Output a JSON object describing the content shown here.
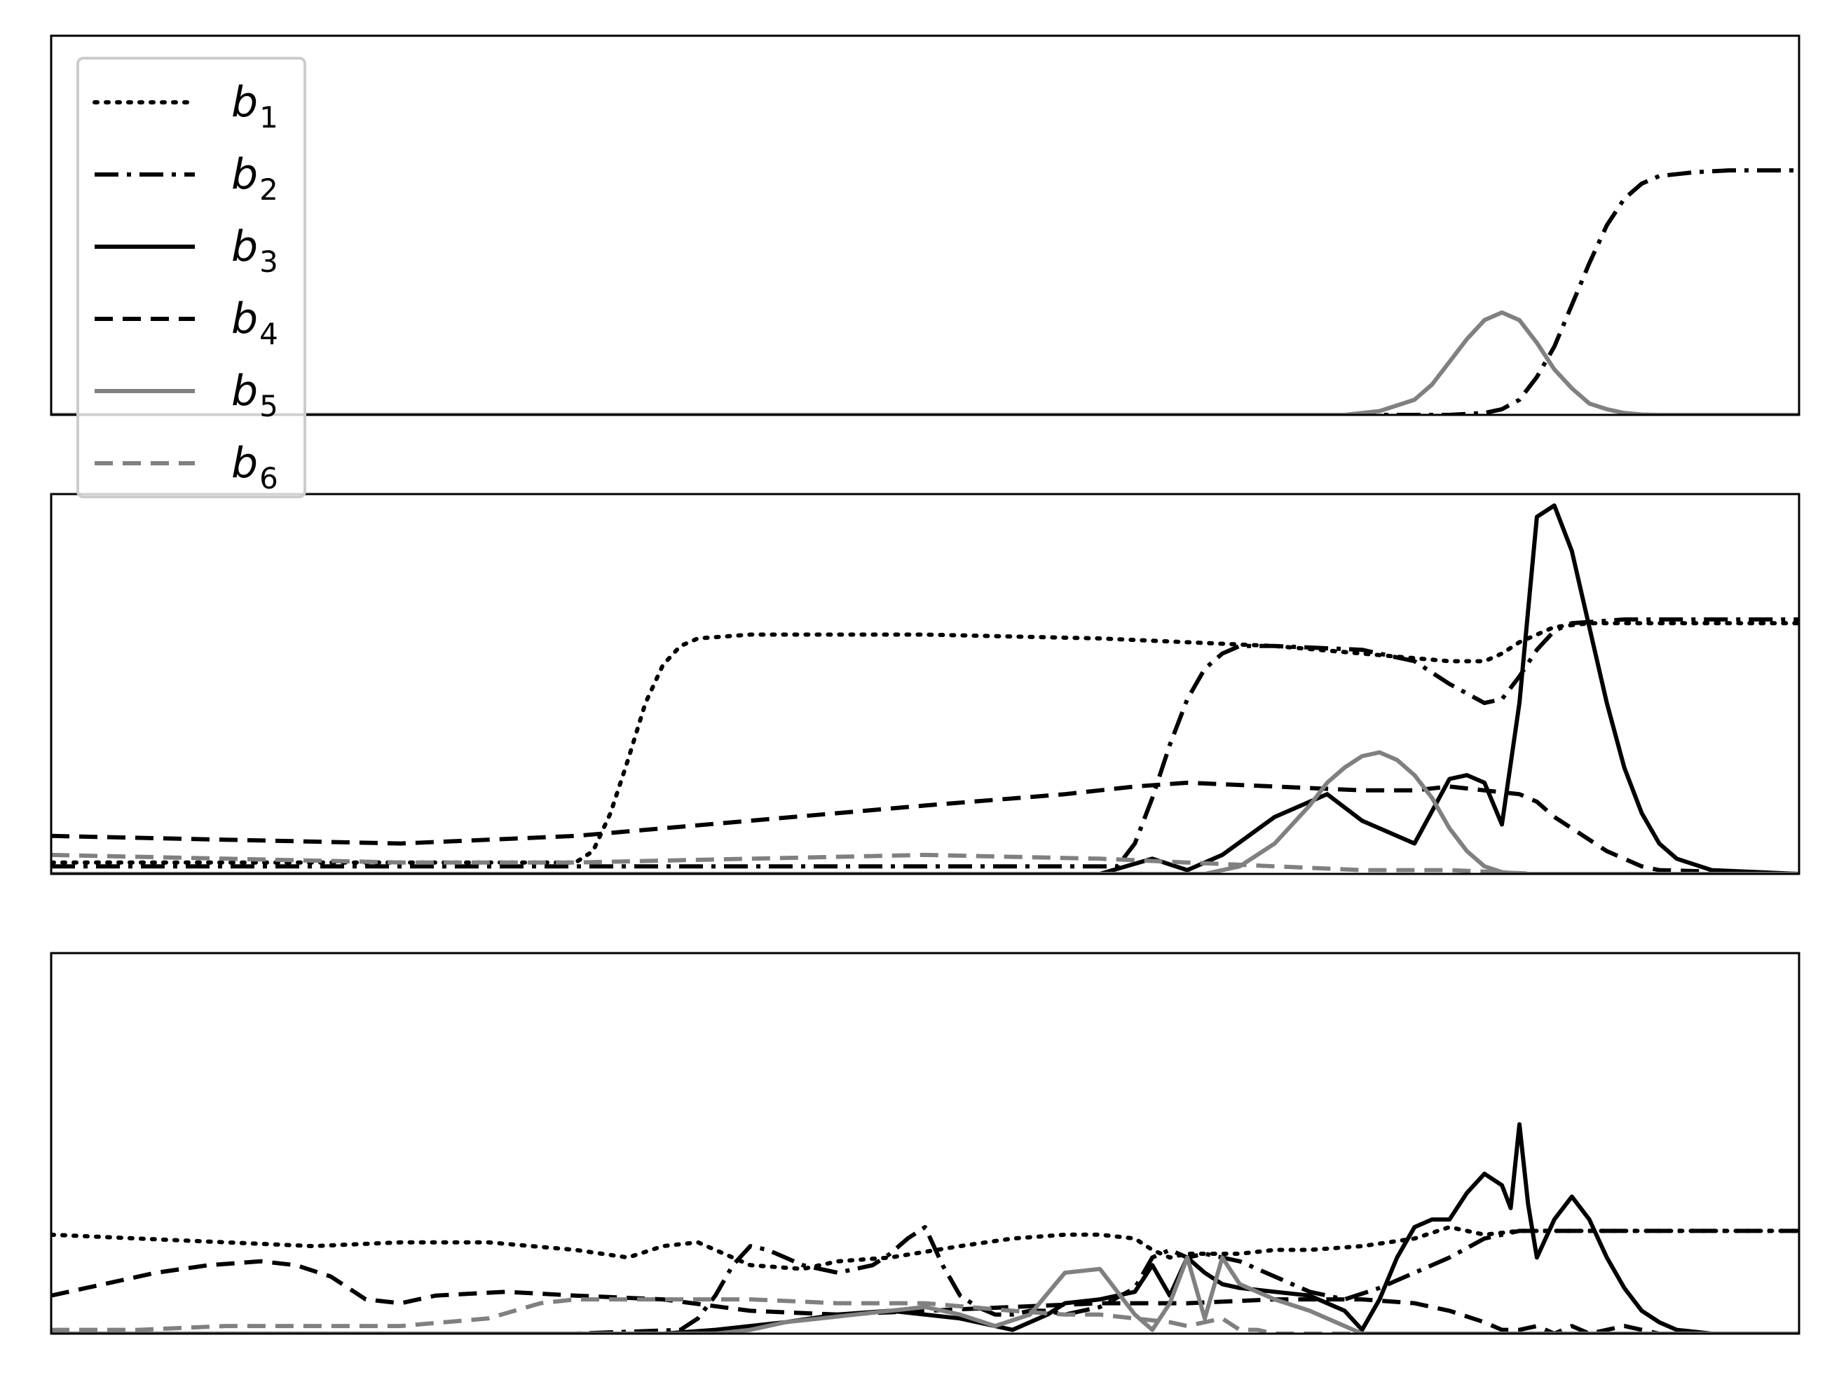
{
  "chart_data": {
    "type": "line",
    "description_note": "",
    "legend": {
      "placement": "top-left",
      "entries": [
        {
          "base": "b",
          "sub": "1",
          "color": "#000000",
          "dash": "dotted"
        },
        {
          "base": "b",
          "sub": "2",
          "color": "#000000",
          "dash": "dashdot"
        },
        {
          "base": "b",
          "sub": "3",
          "color": "#000000",
          "dash": "solid"
        },
        {
          "base": "b",
          "sub": "4",
          "color": "#000000",
          "dash": "dashed"
        },
        {
          "base": "b",
          "sub": "5",
          "color": "#808080",
          "dash": "solid"
        },
        {
          "base": "b",
          "sub": "6",
          "color": "#808080",
          "dash": "dashed"
        }
      ]
    },
    "panels": [
      {
        "name": "top",
        "xlim": [
          0,
          100
        ],
        "ylim": [
          0,
          1
        ],
        "grid": false,
        "ticks": "none",
        "series": [
          {
            "name": "b2",
            "color": "#000000",
            "dash": "dashdot",
            "x": [
              0,
              80,
              82,
              83,
              84,
              85,
              86,
              87,
              88,
              89,
              90,
              91,
              92,
              94,
              96,
              100
            ],
            "y": [
              0,
              0,
              0.005,
              0.015,
              0.04,
              0.1,
              0.18,
              0.29,
              0.4,
              0.5,
              0.57,
              0.61,
              0.63,
              0.64,
              0.645,
              0.645
            ]
          },
          {
            "name": "b5",
            "color": "#808080",
            "dash": "solid",
            "x": [
              0,
              74,
              76,
              78,
              79,
              80,
              81,
              82,
              83,
              84,
              85,
              86,
              87,
              88,
              89,
              90,
              91,
              92,
              100
            ],
            "y": [
              0,
              0,
              0.01,
              0.04,
              0.08,
              0.14,
              0.2,
              0.25,
              0.27,
              0.25,
              0.19,
              0.12,
              0.07,
              0.03,
              0.015,
              0.005,
              0.001,
              0,
              0
            ]
          }
        ]
      },
      {
        "name": "middle",
        "xlim": [
          0,
          100
        ],
        "ylim": [
          0,
          1
        ],
        "grid": false,
        "ticks": "none",
        "series": [
          {
            "name": "b1",
            "color": "#000000",
            "dash": "dotted",
            "x": [
              0,
              30,
              31,
              32,
              33,
              34,
              35,
              36,
              37,
              40,
              50,
              60,
              65,
              70,
              75,
              80,
              82,
              83,
              84,
              85,
              86,
              88,
              100
            ],
            "y": [
              0.03,
              0.03,
              0.06,
              0.16,
              0.3,
              0.45,
              0.55,
              0.6,
              0.62,
              0.63,
              0.63,
              0.62,
              0.61,
              0.6,
              0.58,
              0.56,
              0.56,
              0.58,
              0.61,
              0.63,
              0.65,
              0.66,
              0.66
            ]
          },
          {
            "name": "b2",
            "color": "#000000",
            "dash": "dashdot",
            "x": [
              0,
              61,
              62,
              63,
              64,
              65,
              66,
              67,
              68,
              70,
              75,
              78,
              80,
              82,
              83,
              84,
              85,
              86,
              87,
              90,
              95,
              100
            ],
            "y": [
              0.02,
              0.02,
              0.08,
              0.2,
              0.34,
              0.46,
              0.54,
              0.58,
              0.6,
              0.6,
              0.59,
              0.56,
              0.5,
              0.45,
              0.46,
              0.52,
              0.59,
              0.64,
              0.66,
              0.67,
              0.67,
              0.67
            ]
          },
          {
            "name": "b3",
            "color": "#000000",
            "dash": "solid",
            "x": [
              0,
              60,
              63,
              65,
              67,
              70,
              73,
              75,
              78,
              80,
              81,
              82,
              83,
              84,
              85,
              86,
              87,
              88,
              89,
              90,
              91,
              92,
              93,
              95,
              100
            ],
            "y": [
              0,
              0,
              0.04,
              0.01,
              0.05,
              0.15,
              0.21,
              0.14,
              0.08,
              0.25,
              0.26,
              0.24,
              0.13,
              0.45,
              0.94,
              0.97,
              0.85,
              0.65,
              0.45,
              0.28,
              0.16,
              0.08,
              0.04,
              0.01,
              0
            ]
          },
          {
            "name": "b4",
            "color": "#000000",
            "dash": "dashed",
            "x": [
              0,
              10,
              20,
              30,
              40,
              50,
              58,
              62,
              65,
              70,
              75,
              78,
              80,
              82,
              84,
              85,
              86,
              87,
              88,
              89,
              90,
              91,
              92,
              100
            ],
            "y": [
              0.1,
              0.09,
              0.08,
              0.1,
              0.14,
              0.18,
              0.21,
              0.23,
              0.24,
              0.23,
              0.22,
              0.22,
              0.23,
              0.22,
              0.21,
              0.19,
              0.15,
              0.12,
              0.09,
              0.06,
              0.04,
              0.02,
              0.01,
              0
            ]
          },
          {
            "name": "b5",
            "color": "#808080",
            "dash": "solid",
            "x": [
              0,
              66,
              68,
              70,
              72,
              73,
              74,
              75,
              76,
              77,
              78,
              79,
              80,
              81,
              82,
              83,
              84,
              100
            ],
            "y": [
              0,
              0,
              0.02,
              0.08,
              0.18,
              0.24,
              0.28,
              0.31,
              0.32,
              0.3,
              0.26,
              0.2,
              0.12,
              0.06,
              0.02,
              0.005,
              0,
              0
            ]
          },
          {
            "name": "b6",
            "color": "#808080",
            "dash": "dashed",
            "x": [
              0,
              10,
              20,
              30,
              40,
              50,
              60,
              65,
              70,
              75,
              80,
              85,
              100
            ],
            "y": [
              0.05,
              0.04,
              0.03,
              0.03,
              0.04,
              0.05,
              0.04,
              0.03,
              0.02,
              0.01,
              0.01,
              0,
              0
            ]
          }
        ]
      },
      {
        "name": "bottom",
        "xlim": [
          0,
          100
        ],
        "ylim": [
          0,
          1
        ],
        "grid": false,
        "ticks": "none",
        "series": [
          {
            "name": "b1",
            "color": "#000000",
            "dash": "dotted",
            "x": [
              0,
              5,
              10,
              15,
              20,
              25,
              30,
              33,
              35,
              37,
              40,
              43,
              45,
              48,
              52,
              55,
              58,
              60,
              62,
              63,
              64,
              65,
              68,
              70,
              72,
              75,
              78,
              80,
              82,
              84,
              86,
              88,
              90,
              95,
              100
            ],
            "y": [
              0.26,
              0.25,
              0.24,
              0.23,
              0.24,
              0.24,
              0.22,
              0.2,
              0.23,
              0.24,
              0.18,
              0.17,
              0.19,
              0.2,
              0.23,
              0.25,
              0.26,
              0.26,
              0.25,
              0.22,
              0.2,
              0.21,
              0.21,
              0.22,
              0.22,
              0.23,
              0.25,
              0.28,
              0.26,
              0.27,
              0.27,
              0.27,
              0.27,
              0.27,
              0.27
            ]
          },
          {
            "name": "b2",
            "color": "#000000",
            "dash": "dashdot",
            "x": [
              0,
              30,
              36,
              37,
              38,
              39,
              40,
              41,
              42,
              43,
              45,
              47,
              48,
              49,
              50,
              51,
              52,
              53,
              54,
              55,
              56,
              57,
              58,
              60,
              62,
              63,
              64,
              65,
              66,
              68,
              70,
              72,
              74,
              76,
              78,
              80,
              82,
              84,
              86,
              88,
              90,
              95,
              100
            ],
            "y": [
              0,
              0,
              0.01,
              0.04,
              0.1,
              0.18,
              0.23,
              0.22,
              0.2,
              0.18,
              0.16,
              0.18,
              0.21,
              0.25,
              0.28,
              0.18,
              0.1,
              0.07,
              0.05,
              0.05,
              0.06,
              0.06,
              0.05,
              0.07,
              0.12,
              0.2,
              0.22,
              0.2,
              0.21,
              0.19,
              0.15,
              0.11,
              0.09,
              0.12,
              0.16,
              0.2,
              0.25,
              0.27,
              0.27,
              0.27,
              0.27,
              0.27,
              0.27
            ]
          },
          {
            "name": "b3",
            "color": "#000000",
            "dash": "solid",
            "x": [
              0,
              35,
              38,
              40,
              42,
              45,
              48,
              50,
              52,
              55,
              57,
              58,
              60,
              62,
              63,
              64,
              65,
              66,
              67,
              68,
              70,
              72,
              74,
              75,
              76,
              77,
              78,
              79,
              80,
              81,
              82,
              83,
              83.5,
              84,
              84.5,
              85,
              86,
              87,
              88,
              89,
              90,
              91,
              92,
              93,
              95,
              100
            ],
            "y": [
              0,
              0,
              0.01,
              0.02,
              0.03,
              0.05,
              0.06,
              0.05,
              0.04,
              0.01,
              0.05,
              0.08,
              0.09,
              0.11,
              0.18,
              0.1,
              0.2,
              0.16,
              0.13,
              0.12,
              0.11,
              0.1,
              0.06,
              0.01,
              0.09,
              0.2,
              0.28,
              0.3,
              0.3,
              0.37,
              0.42,
              0.39,
              0.33,
              0.55,
              0.34,
              0.2,
              0.3,
              0.36,
              0.3,
              0.2,
              0.12,
              0.06,
              0.03,
              0.01,
              0,
              0
            ]
          },
          {
            "name": "b4",
            "color": "#000000",
            "dash": "dashed",
            "x": [
              0,
              3,
              6,
              9,
              12,
              14,
              16,
              18,
              20,
              22,
              26,
              30,
              35,
              40,
              45,
              50,
              55,
              60,
              65,
              70,
              75,
              78,
              80,
              82,
              83,
              84,
              85,
              86,
              87,
              88,
              89,
              90,
              91,
              92,
              93,
              100
            ],
            "y": [
              0.1,
              0.13,
              0.16,
              0.18,
              0.19,
              0.18,
              0.15,
              0.09,
              0.08,
              0.1,
              0.11,
              0.1,
              0.09,
              0.06,
              0.05,
              0.06,
              0.07,
              0.08,
              0.08,
              0.09,
              0.09,
              0.08,
              0.06,
              0.03,
              0.01,
              0.01,
              0.02,
              0,
              0.02,
              0,
              0.01,
              0.02,
              0.01,
              0,
              0,
              0
            ]
          },
          {
            "name": "b5",
            "color": "#808080",
            "dash": "solid",
            "x": [
              0,
              38,
              40,
              42,
              44,
              46,
              48,
              50,
              52,
              54,
              56,
              58,
              60,
              62,
              63,
              64,
              65,
              66,
              67,
              68,
              69,
              70,
              72,
              74,
              75,
              76,
              100
            ],
            "y": [
              0,
              0,
              0.01,
              0.03,
              0.04,
              0.05,
              0.06,
              0.07,
              0.05,
              0.02,
              0.05,
              0.16,
              0.17,
              0.05,
              0.01,
              0.08,
              0.2,
              0.04,
              0.2,
              0.13,
              0.11,
              0.09,
              0.06,
              0.02,
              0,
              0,
              0
            ]
          },
          {
            "name": "b6",
            "color": "#808080",
            "dash": "dashed",
            "x": [
              0,
              5,
              10,
              15,
              20,
              25,
              28,
              30,
              32,
              35,
              40,
              45,
              50,
              55,
              58,
              60,
              62,
              64,
              65,
              66,
              67,
              68,
              69,
              70,
              72,
              100
            ],
            "y": [
              0.01,
              0.01,
              0.02,
              0.02,
              0.02,
              0.04,
              0.08,
              0.09,
              0.09,
              0.09,
              0.09,
              0.08,
              0.08,
              0.06,
              0.05,
              0.05,
              0.04,
              0.03,
              0.02,
              0.03,
              0.04,
              0.01,
              0.01,
              0,
              0,
              0
            ]
          }
        ]
      }
    ]
  }
}
